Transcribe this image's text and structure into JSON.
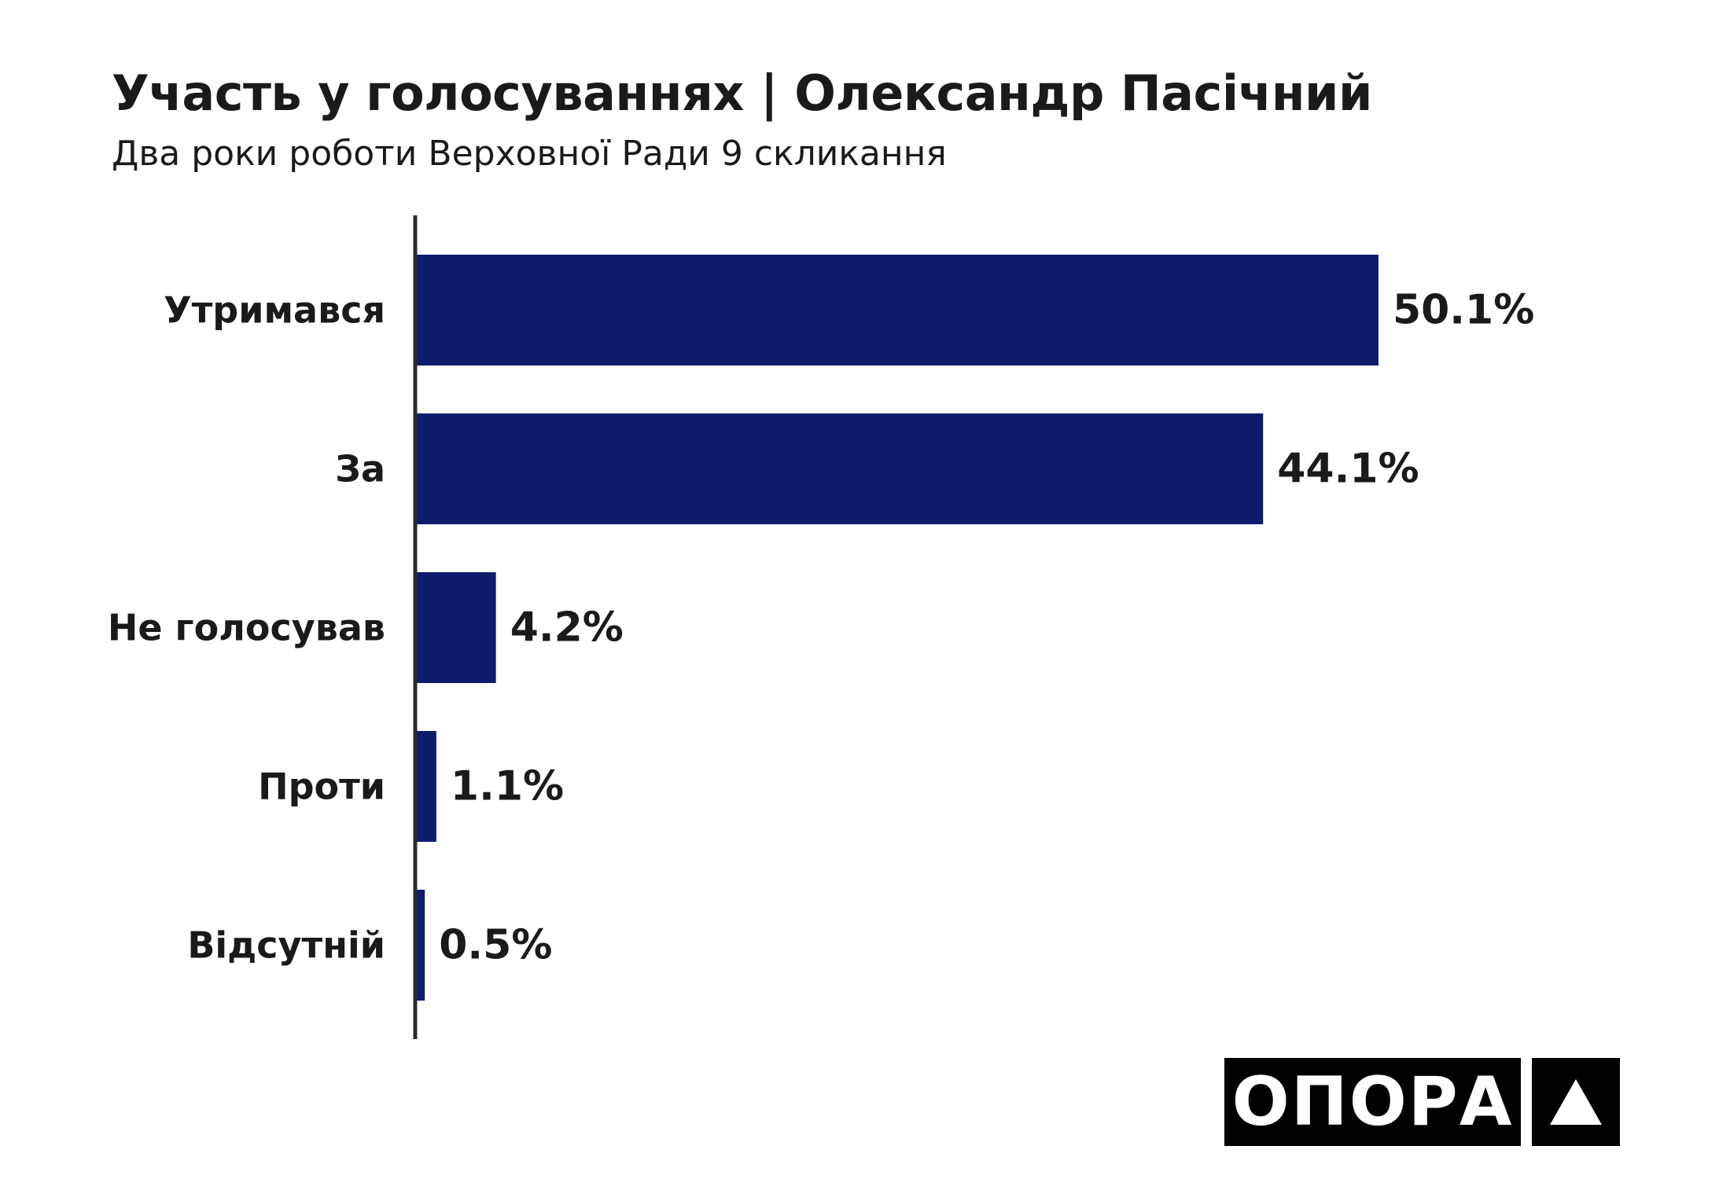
{
  "header": {
    "title": "Участь у голосуваннях | Олександр Пасічний",
    "subtitle": "Два роки роботи Верховної Ради 9 скликання"
  },
  "logo": {
    "text": "ОПОРА",
    "mark_icon": "triangle-icon"
  },
  "colors": {
    "bar": "#0f1c6e",
    "axis": "#2b2b2b",
    "text": "#1a1a1a",
    "logo_bg": "#000000"
  },
  "chart_data": {
    "type": "bar",
    "orientation": "horizontal",
    "categories": [
      "Утримався",
      "За",
      "Не голосував",
      "Проти",
      "Відсутній"
    ],
    "values": [
      50.1,
      44.1,
      4.2,
      1.1,
      0.5
    ],
    "value_labels": [
      "50.1%",
      "44.1%",
      "4.2%",
      "1.1%",
      "0.5%"
    ],
    "unit": "%",
    "title": "Участь у голосуваннях | Олександр Пасічний",
    "subtitle": "Два роки роботи Верховної Ради 9 скликання",
    "xlabel": "",
    "ylabel": "",
    "grid": false,
    "legend": "none"
  }
}
